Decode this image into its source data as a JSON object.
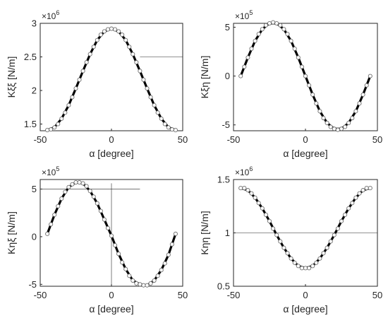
{
  "chart_data": [
    {
      "type": "line",
      "xlabel": "α [degree]",
      "ylabel": "Kξξ [N/m]",
      "xlim": [
        -50,
        50
      ],
      "ylim": [
        1.4,
        3.0
      ],
      "exponent_label": "×10",
      "exponent_power": "6",
      "xticks": [
        -50,
        0,
        50
      ],
      "xtick_labels": [
        "-50",
        "0",
        "50"
      ],
      "yticks": [
        1.5,
        2,
        2.5,
        3
      ],
      "ytick_labels": [
        "1.5",
        "2",
        "2.5",
        "3"
      ],
      "series": [
        {
          "style": "solid-thick",
          "x": [
            -45,
            -40,
            -35,
            -30,
            -25,
            -20,
            -15,
            -10,
            -5,
            0,
            5,
            10,
            15,
            20,
            25,
            30,
            35,
            40,
            45
          ],
          "y": [
            1.41,
            1.45,
            1.58,
            1.78,
            2.03,
            2.29,
            2.54,
            2.75,
            2.88,
            2.92,
            2.88,
            2.75,
            2.54,
            2.29,
            2.03,
            1.78,
            1.58,
            1.45,
            1.41
          ]
        },
        {
          "style": "circle-markers",
          "x": [
            -45,
            -42.5,
            -40,
            -37.5,
            -35,
            -32.5,
            -30,
            -27.5,
            -25,
            -22.5,
            -20,
            -17.5,
            -15,
            -12.5,
            -10,
            -7.5,
            -5,
            -2.5,
            0,
            2.5,
            5,
            7.5,
            10,
            12.5,
            15,
            17.5,
            20,
            22.5,
            25,
            27.5,
            30,
            32.5,
            35,
            37.5,
            40,
            42.5,
            45
          ],
          "y": [
            1.41,
            1.42,
            1.45,
            1.5,
            1.58,
            1.67,
            1.78,
            1.9,
            2.03,
            2.16,
            2.29,
            2.42,
            2.54,
            2.65,
            2.75,
            2.83,
            2.88,
            2.91,
            2.92,
            2.91,
            2.88,
            2.83,
            2.75,
            2.65,
            2.54,
            2.42,
            2.29,
            2.16,
            2.03,
            1.9,
            1.78,
            1.67,
            1.58,
            1.5,
            1.45,
            1.42,
            1.41
          ]
        }
      ]
    },
    {
      "type": "line",
      "xlabel": "α [degree]",
      "ylabel": "Kξη [N/m]",
      "xlim": [
        -50,
        50
      ],
      "ylim": [
        -5.6,
        5.4
      ],
      "exponent_label": "×10",
      "exponent_power": "5",
      "xticks": [
        -50,
        0,
        50
      ],
      "xtick_labels": [
        "-50",
        "0",
        "50"
      ],
      "yticks": [
        -5,
        0,
        5
      ],
      "ytick_labels": [
        "-5",
        "0",
        "5"
      ],
      "series": [
        {
          "style": "solid-thick",
          "x": [
            -45,
            -40,
            -35,
            -30,
            -25,
            -20,
            -15,
            -10,
            -5,
            0,
            5,
            10,
            15,
            20,
            25,
            30,
            35,
            40,
            45
          ],
          "y": [
            0,
            1.9,
            3.6,
            4.8,
            5.4,
            5.4,
            4.8,
            3.6,
            1.9,
            0,
            -1.9,
            -3.6,
            -4.8,
            -5.4,
            -5.4,
            -4.8,
            -3.6,
            -1.9,
            0
          ]
        },
        {
          "style": "circle-markers",
          "x": [
            -45,
            -42.5,
            -40,
            -37.5,
            -35,
            -32.5,
            -30,
            -27.5,
            -25,
            -22.5,
            -20,
            -17.5,
            -15,
            -12.5,
            -10,
            -7.5,
            -5,
            -2.5,
            0,
            2.5,
            5,
            7.5,
            10,
            12.5,
            15,
            17.5,
            20,
            22.5,
            25,
            27.5,
            30,
            32.5,
            35,
            37.5,
            40,
            42.5,
            45
          ],
          "y": [
            0,
            0.95,
            1.9,
            2.8,
            3.6,
            4.3,
            4.8,
            5.2,
            5.4,
            5.5,
            5.4,
            5.2,
            4.8,
            4.3,
            3.6,
            2.8,
            1.9,
            0.95,
            0,
            -0.95,
            -1.9,
            -2.8,
            -3.6,
            -4.3,
            -4.8,
            -5.2,
            -5.4,
            -5.5,
            -5.4,
            -5.2,
            -4.8,
            -4.3,
            -3.6,
            -2.8,
            -1.9,
            -0.95,
            0
          ]
        }
      ]
    },
    {
      "type": "line",
      "xlabel": "α [degree]",
      "ylabel": "Kηξ [N/m]",
      "xlim": [
        -50,
        50
      ],
      "ylim": [
        -5.2,
        6.0
      ],
      "exponent_label": "×10",
      "exponent_power": "5",
      "xticks": [
        -50,
        0,
        50
      ],
      "xtick_labels": [
        "-50",
        "0",
        "50"
      ],
      "yticks": [
        -5,
        0,
        5
      ],
      "ytick_labels": [
        "-5",
        "0",
        "5"
      ],
      "series": [
        {
          "style": "solid-thick",
          "x": [
            -45,
            -40,
            -35,
            -30,
            -25,
            -20,
            -15,
            -10,
            -5,
            0,
            5,
            10,
            15,
            20,
            25,
            30,
            35,
            40,
            45
          ],
          "y": [
            0.3,
            2.3,
            4.0,
            5.2,
            5.7,
            5.6,
            4.8,
            3.5,
            1.8,
            0.1,
            -1.8,
            -3.4,
            -4.6,
            -5.0,
            -5.1,
            -4.6,
            -3.5,
            -1.9,
            0.3
          ]
        },
        {
          "style": "circle-markers",
          "x": [
            -45,
            -42.5,
            -40,
            -37.5,
            -35,
            -32.5,
            -30,
            -27.5,
            -25,
            -22.5,
            -20,
            -17.5,
            -15,
            -12.5,
            -10,
            -7.5,
            -5,
            -2.5,
            0,
            2.5,
            5,
            7.5,
            10,
            12.5,
            15,
            17.5,
            20,
            22.5,
            25,
            27.5,
            30,
            32.5,
            35,
            37.5,
            40,
            42.5,
            45
          ],
          "y": [
            0.3,
            1.3,
            2.3,
            3.2,
            4.0,
            4.7,
            5.2,
            5.5,
            5.7,
            5.7,
            5.6,
            5.3,
            4.8,
            4.2,
            3.5,
            2.7,
            1.8,
            0.9,
            0.1,
            -0.9,
            -1.8,
            -2.7,
            -3.4,
            -4.1,
            -4.6,
            -4.9,
            -5.0,
            -5.1,
            -5.1,
            -4.9,
            -4.6,
            -4.1,
            -3.5,
            -2.8,
            -1.9,
            -0.8,
            0.3
          ]
        }
      ]
    },
    {
      "type": "line",
      "xlabel": "α [degree]",
      "ylabel": "Kηη [N/m]",
      "xlim": [
        -50,
        50
      ],
      "ylim": [
        0.5,
        1.5
      ],
      "exponent_label": "×10",
      "exponent_power": "6",
      "xticks": [
        -50,
        0,
        50
      ],
      "xtick_labels": [
        "-50",
        "0",
        "50"
      ],
      "yticks": [
        0.5,
        1,
        1.5
      ],
      "ytick_labels": [
        "0.5",
        "1",
        "1.5"
      ],
      "series": [
        {
          "style": "solid-thick",
          "x": [
            -45,
            -40,
            -35,
            -30,
            -25,
            -20,
            -15,
            -10,
            -5,
            0,
            5,
            10,
            15,
            20,
            25,
            30,
            35,
            40,
            45
          ],
          "y": [
            1.42,
            1.4,
            1.33,
            1.23,
            1.11,
            0.98,
            0.86,
            0.76,
            0.69,
            0.67,
            0.69,
            0.76,
            0.86,
            0.98,
            1.11,
            1.23,
            1.33,
            1.4,
            1.42
          ]
        },
        {
          "style": "circle-markers",
          "x": [
            -45,
            -42.5,
            -40,
            -37.5,
            -35,
            -32.5,
            -30,
            -27.5,
            -25,
            -22.5,
            -20,
            -17.5,
            -15,
            -12.5,
            -10,
            -7.5,
            -5,
            -2.5,
            0,
            2.5,
            5,
            7.5,
            10,
            12.5,
            15,
            17.5,
            20,
            22.5,
            25,
            27.5,
            30,
            32.5,
            35,
            37.5,
            40,
            42.5,
            45
          ],
          "y": [
            1.42,
            1.42,
            1.4,
            1.37,
            1.33,
            1.28,
            1.23,
            1.17,
            1.11,
            1.04,
            0.98,
            0.92,
            0.86,
            0.81,
            0.76,
            0.72,
            0.69,
            0.67,
            0.67,
            0.67,
            0.69,
            0.72,
            0.76,
            0.81,
            0.86,
            0.92,
            0.98,
            1.04,
            1.11,
            1.17,
            1.23,
            1.28,
            1.33,
            1.37,
            1.4,
            1.42,
            1.42
          ]
        }
      ]
    }
  ]
}
